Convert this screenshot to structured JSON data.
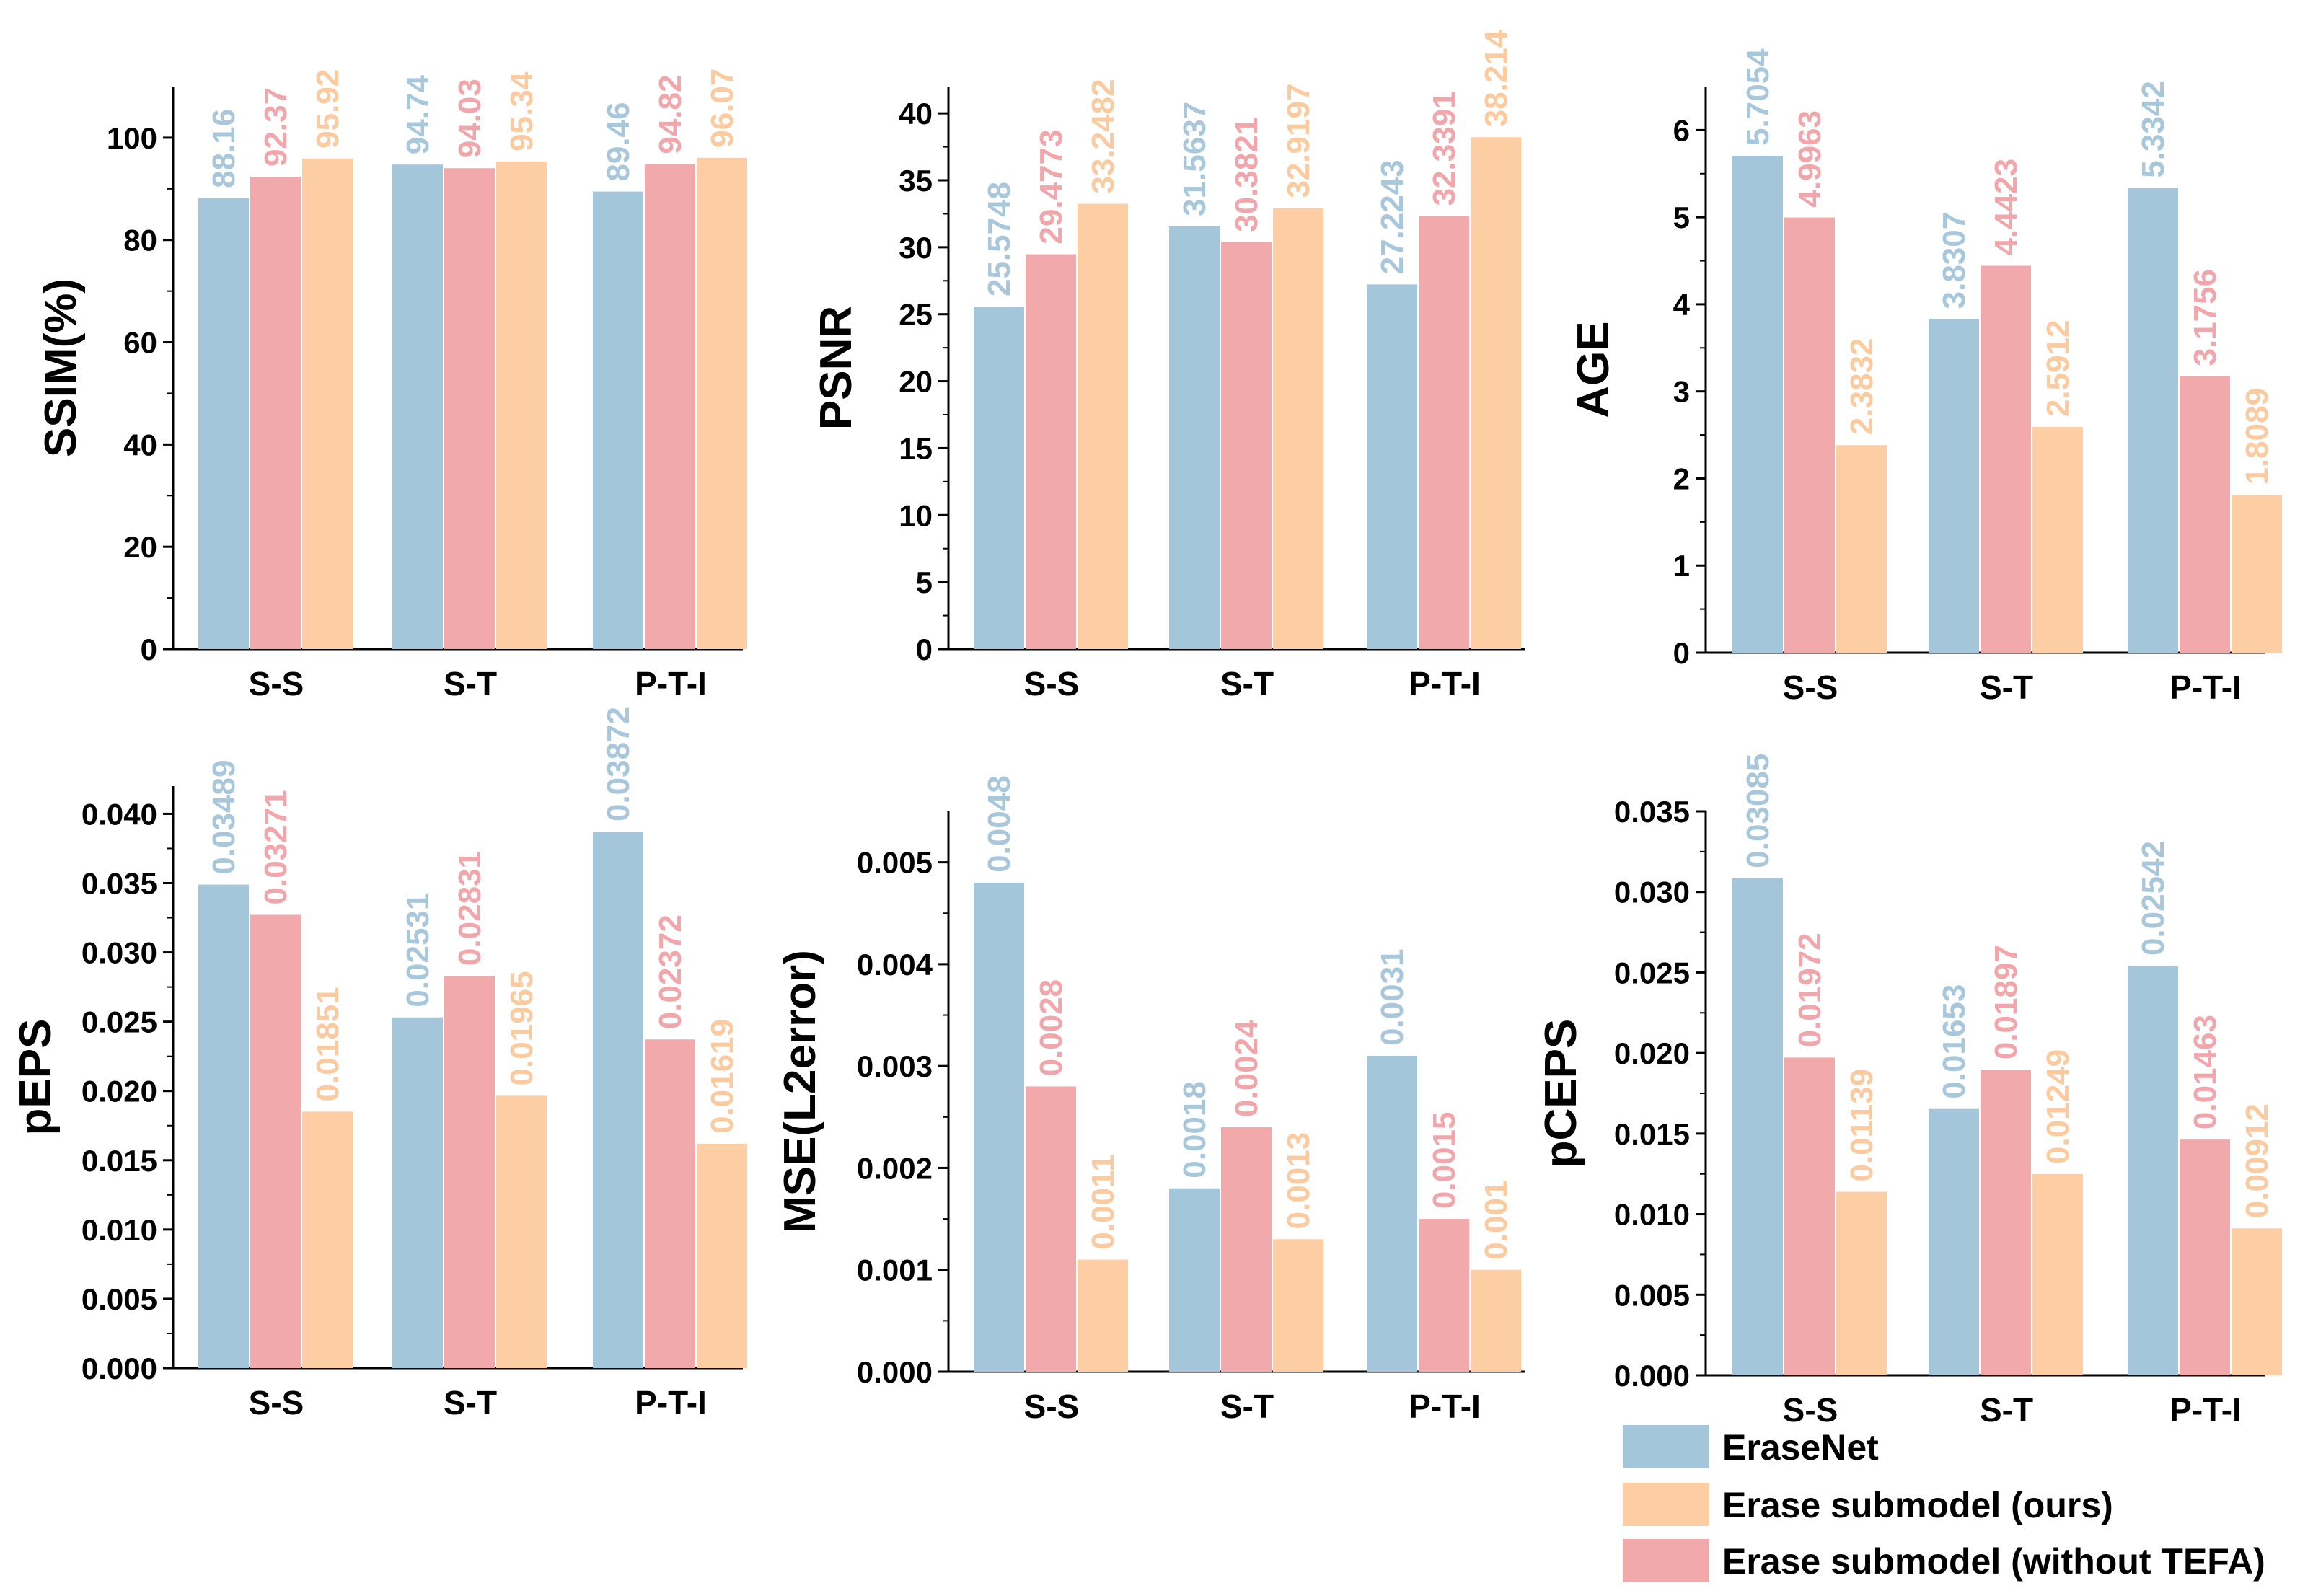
{
  "colors": {
    "EraseNet": "#A3C6DA",
    "Erase submodel (without TEFA)": "#F2A9AC",
    "Erase submodel (ours)": "#FDCDA3",
    "EraseNet_label": "#A8C7DB",
    "Erase submodel (without TEFA)_label": "#F0A6AA",
    "Erase submodel (ours)_label": "#FBCB9F"
  },
  "legend": {
    "items": [
      "EraseNet",
      "Erase submodel (ours)",
      "Erase submodel (without TEFA)"
    ]
  },
  "chart_data": [
    {
      "type": "bar",
      "ylabel": "SSIM(%)",
      "categories": [
        "S-S",
        "S-T",
        "P-T-I"
      ],
      "ylim": [
        0,
        110
      ],
      "yticks": [
        "0",
        "20",
        "40",
        "60",
        "80",
        "100"
      ],
      "series": [
        {
          "name": "EraseNet",
          "values": [
            88.16,
            94.74,
            89.46
          ],
          "labels": [
            "88.16",
            "94.74",
            "89.46"
          ]
        },
        {
          "name": "Erase submodel (without TEFA)",
          "values": [
            92.37,
            94.03,
            94.82
          ],
          "labels": [
            "92.37",
            "94.03",
            "94.82"
          ]
        },
        {
          "name": "Erase submodel (ours)",
          "values": [
            95.92,
            95.34,
            96.07
          ],
          "labels": [
            "95.92",
            "95.34",
            "96.07"
          ]
        }
      ]
    },
    {
      "type": "bar",
      "ylabel": "PSNR",
      "categories": [
        "S-S",
        "S-T",
        "P-T-I"
      ],
      "ylim": [
        0,
        42
      ],
      "yticks": [
        "0",
        "5",
        "10",
        "15",
        "20",
        "25",
        "30",
        "35",
        "40"
      ],
      "series": [
        {
          "name": "EraseNet",
          "values": [
            25.5748,
            31.5637,
            27.2243
          ],
          "labels": [
            "25.5748",
            "31.5637",
            "27.2243"
          ]
        },
        {
          "name": "Erase submodel (without TEFA)",
          "values": [
            29.4773,
            30.3821,
            32.3391
          ],
          "labels": [
            "29.4773",
            "30.3821",
            "32.3391"
          ]
        },
        {
          "name": "Erase submodel (ours)",
          "values": [
            33.2482,
            32.9197,
            38.214
          ],
          "labels": [
            "33.2482",
            "32.9197",
            "38.214"
          ]
        }
      ]
    },
    {
      "type": "bar",
      "ylabel": "AGE",
      "categories": [
        "S-S",
        "S-T",
        "P-T-I"
      ],
      "ylim": [
        0,
        6.5
      ],
      "yticks": [
        "0",
        "1",
        "2",
        "3",
        "4",
        "5",
        "6"
      ],
      "series": [
        {
          "name": "EraseNet",
          "values": [
            5.7054,
            3.8307,
            5.3342
          ],
          "labels": [
            "5.7054",
            "3.8307",
            "5.3342"
          ]
        },
        {
          "name": "Erase submodel (without TEFA)",
          "values": [
            4.9963,
            4.4423,
            3.1756
          ],
          "labels": [
            "4.9963",
            "4.4423",
            "3.1756"
          ]
        },
        {
          "name": "Erase submodel (ours)",
          "values": [
            2.3832,
            2.5912,
            1.8089
          ],
          "labels": [
            "2.3832",
            "2.5912",
            "1.8089"
          ]
        }
      ]
    },
    {
      "type": "bar",
      "ylabel": "pEPS",
      "categories": [
        "S-S",
        "S-T",
        "P-T-I"
      ],
      "ylim": [
        0,
        0.042
      ],
      "yticks": [
        "0.000",
        "0.005",
        "0.010",
        "0.015",
        "0.020",
        "0.025",
        "0.030",
        "0.035",
        "0.040"
      ],
      "series": [
        {
          "name": "EraseNet",
          "values": [
            0.03489,
            0.02531,
            0.03872
          ],
          "labels": [
            "0.03489",
            "0.02531",
            "0.03872"
          ]
        },
        {
          "name": "Erase submodel (without TEFA)",
          "values": [
            0.03271,
            0.02831,
            0.02372
          ],
          "labels": [
            "0.03271",
            "0.02831",
            "0.02372"
          ]
        },
        {
          "name": "Erase submodel (ours)",
          "values": [
            0.01851,
            0.01965,
            0.01619
          ],
          "labels": [
            "0.01851",
            "0.01965",
            "0.01619"
          ]
        }
      ]
    },
    {
      "type": "bar",
      "ylabel": "MSE(L2error)",
      "categories": [
        "S-S",
        "S-T",
        "P-T-I"
      ],
      "ylim": [
        0,
        0.0055
      ],
      "yticks": [
        "0.000",
        "0.001",
        "0.002",
        "0.003",
        "0.004",
        "0.005"
      ],
      "series": [
        {
          "name": "EraseNet",
          "values": [
            0.0048,
            0.0018,
            0.0031
          ],
          "labels": [
            "0.0048",
            "0.0018",
            "0.0031"
          ]
        },
        {
          "name": "Erase submodel (without TEFA)",
          "values": [
            0.0028,
            0.0024,
            0.0015
          ],
          "labels": [
            "0.0028",
            "0.0024",
            "0.0015"
          ]
        },
        {
          "name": "Erase submodel (ours)",
          "values": [
            0.0011,
            0.0013,
            0.001
          ],
          "labels": [
            "0.0011",
            "0.0013",
            "0.001"
          ]
        }
      ]
    },
    {
      "type": "bar",
      "ylabel": "pCEPS",
      "categories": [
        "S-S",
        "S-T",
        "P-T-I"
      ],
      "ylim": [
        0,
        0.035
      ],
      "yticks": [
        "0.000",
        "0.005",
        "0.010",
        "0.015",
        "0.020",
        "0.025",
        "0.030",
        "0.035"
      ],
      "series": [
        {
          "name": "EraseNet",
          "values": [
            0.03085,
            0.01653,
            0.02542
          ],
          "labels": [
            "0.03085",
            "0.01653",
            "0.02542"
          ]
        },
        {
          "name": "Erase submodel (without TEFA)",
          "values": [
            0.01972,
            0.01897,
            0.01463
          ],
          "labels": [
            "0.01972",
            "0.01897",
            "0.01463"
          ]
        },
        {
          "name": "Erase submodel (ours)",
          "values": [
            0.01139,
            0.01249,
            0.00912
          ],
          "labels": [
            "0.01139",
            "0.01249",
            "0.00912"
          ]
        }
      ]
    }
  ]
}
